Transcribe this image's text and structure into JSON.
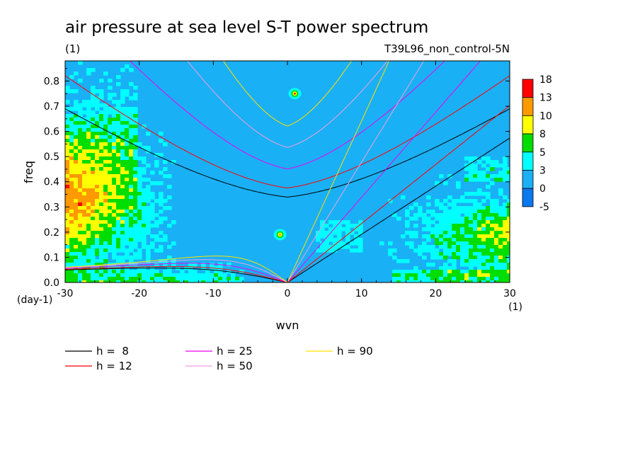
{
  "chart_data": {
    "type": "heatmap",
    "title": "air pressure at sea level S-T power spectrum",
    "subtitle_left": "(1)",
    "subtitle_right": "T39L96_non_control-5N",
    "xlabel": "wvn",
    "ylabel": "freq",
    "x_unit": "(1)",
    "y_unit": "(day-1)",
    "xlim": [
      -30,
      30
    ],
    "ylim": [
      0,
      0.88
    ],
    "xticks": [
      -30,
      -20,
      -10,
      0,
      10,
      20,
      30
    ],
    "xtick_labels": [
      "-30",
      "-20",
      "-10",
      "0",
      "10",
      "20",
      "30"
    ],
    "yticks": [
      0.0,
      0.1,
      0.2,
      0.3,
      0.4,
      0.5,
      0.6,
      0.7,
      0.8
    ],
    "ytick_labels": [
      "0.0",
      "0.1",
      "0.2",
      "0.3",
      "0.4",
      "0.5",
      "0.6",
      "0.7",
      "0.8"
    ],
    "colorbar": {
      "levels": [
        "18",
        "13",
        "10",
        "8",
        "5",
        "3",
        "0",
        "-5"
      ],
      "colors": [
        "#ff0000",
        "#ff9900",
        "#ffff00",
        "#00dd00",
        "#00ffff",
        "#1ab0f5",
        "#0a78f0"
      ]
    },
    "field_colors": {
      "background": "#1ab0f5",
      "level_3_5": "#00ffff",
      "level_5_8": "#00dd00",
      "level_8_10": "#ffff00",
      "level_10_13": "#ff9900",
      "level_13_18": "#ff0000"
    },
    "dispersion_curves": [
      {
        "label": "h =  8",
        "h": 8,
        "color": "#000000"
      },
      {
        "label": "h = 12",
        "h": 12,
        "color": "#ff0000"
      },
      {
        "label": "h = 25",
        "h": 25,
        "color": "#ee00ee"
      },
      {
        "label": "h = 50",
        "h": 50,
        "color": "#f0a0e0"
      },
      {
        "label": "h = 90",
        "h": 90,
        "color": "#ffe000"
      }
    ],
    "hot_spots": [
      {
        "x": 1,
        "y": 0.75
      },
      {
        "x": -1,
        "y": 0.19
      }
    ]
  }
}
